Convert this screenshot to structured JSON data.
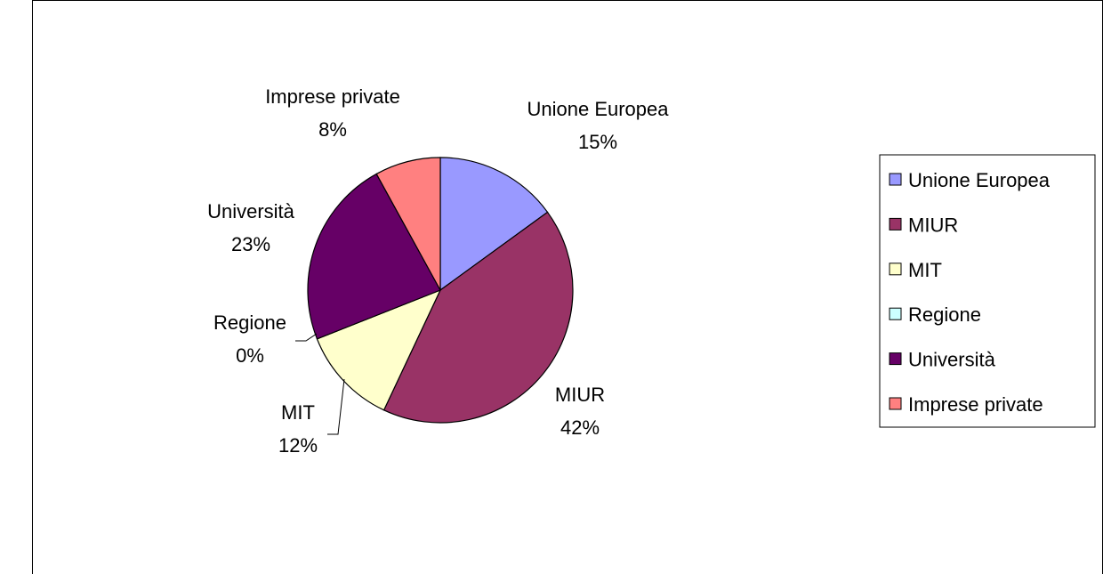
{
  "chart_data": {
    "type": "pie",
    "title": "",
    "categories": [
      "Unione Europea",
      "MIUR",
      "MIT",
      "Regione",
      "Università",
      "Imprese private"
    ],
    "values": [
      15,
      42,
      12,
      0,
      23,
      8
    ],
    "value_unit": "%",
    "data_labels": [
      "15%",
      "42%",
      "12%",
      "0%",
      "23%",
      "8%"
    ],
    "colors": [
      "#9999FF",
      "#993366",
      "#FFFFCC",
      "#CCFFFF",
      "#660066",
      "#FF8080"
    ],
    "legend": {
      "placement": "right",
      "entries": [
        "Unione Europea",
        "MIUR",
        "MIT",
        "Regione",
        "Università",
        "Imprese private"
      ]
    }
  }
}
